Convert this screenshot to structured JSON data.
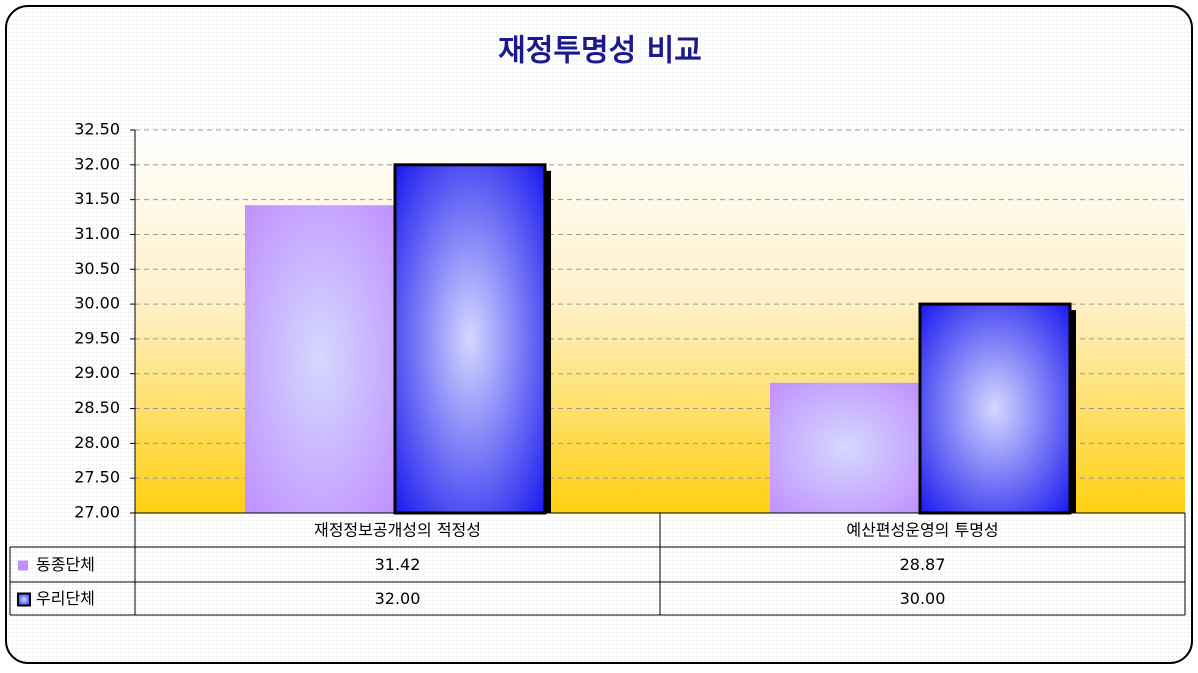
{
  "chart_data": {
    "type": "bar",
    "title": "재정투명성 비교",
    "categories": [
      "재정정보공개성의 적정성",
      "예산편성운영의 투명성"
    ],
    "series": [
      {
        "name": "동종단체",
        "color": "#c090ff",
        "values": [
          31.42,
          28.87
        ]
      },
      {
        "name": "우리단체",
        "color": "#1a1aee",
        "values": [
          32.0,
          30.0
        ],
        "value_labels": [
          "32.00",
          "30.00"
        ]
      }
    ],
    "ylim": [
      27,
      32.5
    ],
    "yticks": [
      {
        "value": 27,
        "label": "27.00"
      },
      {
        "value": 27.5,
        "label": "27.50"
      },
      {
        "value": 28,
        "label": "28.00"
      },
      {
        "value": 28.5,
        "label": "28.50"
      },
      {
        "value": 29,
        "label": "29.00"
      },
      {
        "value": 29.5,
        "label": "29.50"
      },
      {
        "value": 30,
        "label": "30.00"
      },
      {
        "value": 30.5,
        "label": "30.50"
      },
      {
        "value": 31,
        "label": "31.00"
      },
      {
        "value": 31.5,
        "label": "31.50"
      },
      {
        "value": 32,
        "label": "32.00"
      },
      {
        "value": 32.5,
        "label": "32.50"
      }
    ],
    "grid": true,
    "legend": "table"
  }
}
